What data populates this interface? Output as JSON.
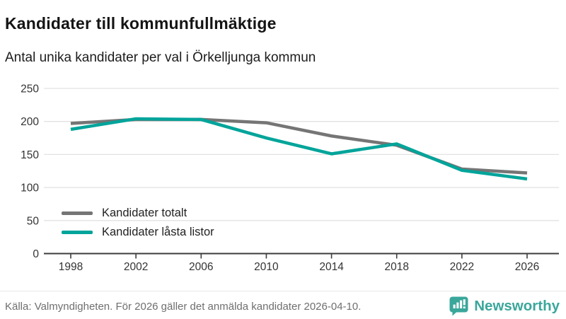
{
  "header": {
    "title": "Kandidater till kommunfullmäktige",
    "subtitle": "Antal unika kandidater per val i Örkelljunga kommun"
  },
  "chart_data": {
    "type": "line",
    "x": [
      1998,
      2002,
      2006,
      2010,
      2014,
      2018,
      2022,
      2026
    ],
    "series": [
      {
        "name": "Kandidater totalt",
        "color": "#757575",
        "values": [
          197,
          203,
          203,
          198,
          178,
          164,
          128,
          122
        ]
      },
      {
        "name": "Kandidater låsta listor",
        "color": "#00a49a",
        "values": [
          188,
          204,
          203,
          175,
          151,
          166,
          126,
          113
        ]
      }
    ],
    "ylim": [
      0,
      250
    ],
    "yticks": [
      0,
      50,
      100,
      150,
      200,
      250
    ],
    "grid": true,
    "legend_position": "inside-bottom-left",
    "colors": {
      "gridline": "#e2e2e2",
      "axis": "#3c3c3c",
      "tick_label": "#333333"
    }
  },
  "footer": {
    "source": "Källa: Valmyndigheten. För 2026 gäller det anmälda kandidater 2026-04-10.",
    "brand": "Newsworthy",
    "brand_color": "#3aa79b"
  }
}
